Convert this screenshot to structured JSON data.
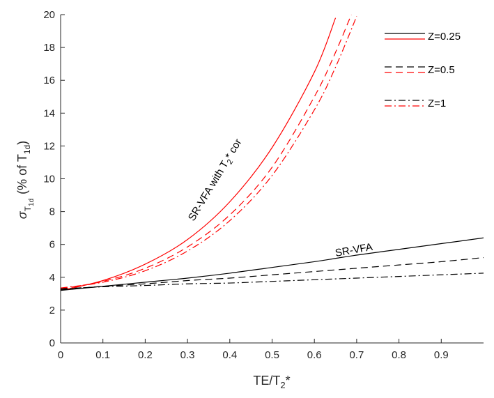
{
  "chart_data": {
    "type": "line",
    "xlabel": "TE/T2*",
    "ylabel": "σT1d (% of T1d)",
    "xlim": [
      0,
      1
    ],
    "ylim": [
      0,
      20
    ],
    "x_ticks": [
      "0",
      "0.1",
      "0.2",
      "0.3",
      "0.4",
      "0.5",
      "0.6",
      "0.7",
      "0.8",
      "0.9"
    ],
    "y_ticks": [
      "0",
      "2",
      "4",
      "6",
      "8",
      "10",
      "12",
      "14",
      "16",
      "18",
      "20"
    ],
    "grid": false,
    "legend_position": "top-right",
    "legend": [
      {
        "label": "Z=0.25",
        "dash": "solid"
      },
      {
        "label": "Z=0.5",
        "dash": "dashed"
      },
      {
        "label": "Z=1",
        "dash": "dashdot"
      }
    ],
    "annotations": [
      {
        "text": "SR-VFA with T2* cor",
        "near_series": "SR-VFA with T2* cor Z=0.25"
      },
      {
        "text": "SR-VFA",
        "near_series": "SR-VFA Z=0.25"
      }
    ],
    "colors": {
      "sr_vfa": "#000000",
      "sr_vfa_t2cor": "#ff0000",
      "axis": "#262626"
    },
    "x": [
      0,
      0.1,
      0.2,
      0.3,
      0.4,
      0.5,
      0.6,
      0.65,
      0.7,
      0.8,
      0.9,
      1.0
    ],
    "series": [
      {
        "name": "SR-VFA with T2* cor Z=0.25",
        "color": "#ff0000",
        "dash": "solid",
        "values": [
          3.2,
          3.8,
          4.8,
          6.3,
          8.6,
          11.9,
          16.5,
          19.8,
          null,
          null,
          null,
          null
        ]
      },
      {
        "name": "SR-VFA with T2* cor Z=0.5",
        "color": "#ff0000",
        "dash": "dashed",
        "values": [
          3.3,
          3.75,
          4.55,
          5.85,
          7.8,
          10.7,
          15.0,
          17.7,
          20.8,
          null,
          null,
          null
        ]
      },
      {
        "name": "SR-VFA with T2* cor Z=1",
        "color": "#ff0000",
        "dash": "dashdot",
        "values": [
          3.35,
          3.7,
          4.4,
          5.6,
          7.45,
          10.2,
          14.2,
          16.8,
          19.9,
          null,
          null,
          null
        ]
      },
      {
        "name": "SR-VFA Z=0.25",
        "color": "#000000",
        "dash": "solid",
        "values": [
          3.2,
          3.45,
          3.7,
          3.95,
          4.25,
          4.6,
          4.95,
          5.15,
          5.35,
          5.7,
          6.05,
          6.4
        ]
      },
      {
        "name": "SR-VFA Z=0.5",
        "color": "#000000",
        "dash": "dashed",
        "values": [
          3.25,
          3.45,
          3.6,
          3.8,
          3.95,
          4.15,
          4.35,
          4.45,
          4.55,
          4.75,
          4.95,
          5.2
        ]
      },
      {
        "name": "SR-VFA Z=1",
        "color": "#000000",
        "dash": "dashdot",
        "values": [
          3.3,
          3.42,
          3.5,
          3.6,
          3.65,
          3.75,
          3.85,
          3.9,
          3.95,
          4.05,
          4.15,
          4.25
        ]
      }
    ]
  }
}
